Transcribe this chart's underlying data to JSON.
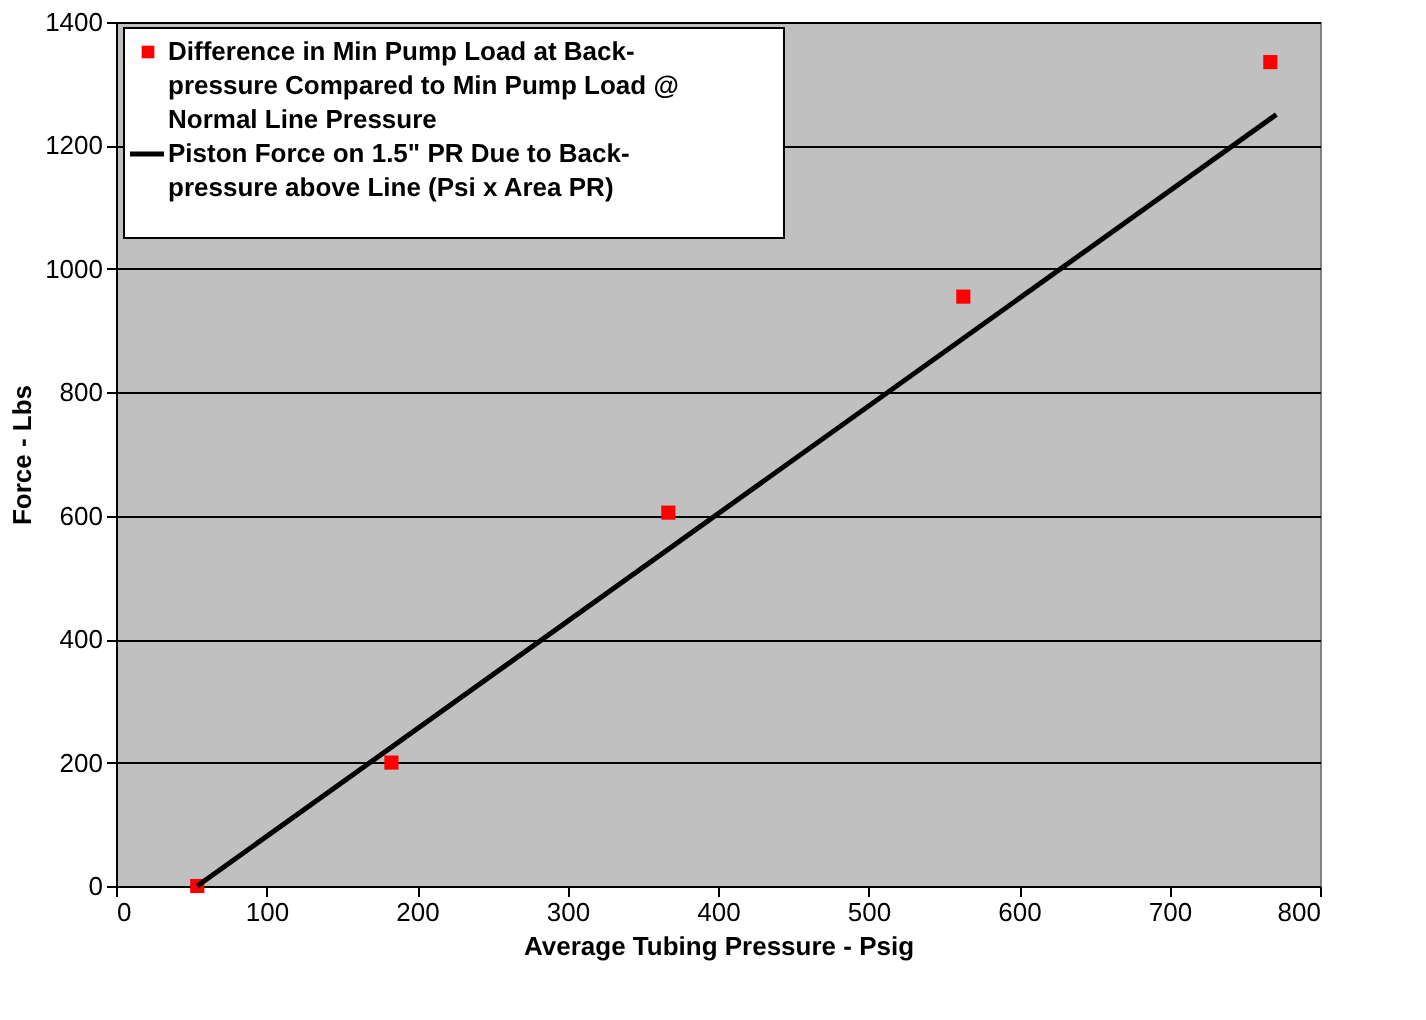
{
  "chart_data": {
    "type": "scatter",
    "xlabel": "Average Tubing Pressure - Psig",
    "ylabel": "Force - Lbs",
    "xlim": [
      0,
      800
    ],
    "xticks": [
      0,
      100,
      200,
      300,
      400,
      500,
      600,
      700,
      800
    ],
    "ylim": [
      0,
      1400
    ],
    "yticks": [
      0,
      200,
      400,
      600,
      800,
      1000,
      1200,
      1400
    ],
    "grid": "y",
    "legend": "top left",
    "series": [
      {
        "name": "Difference in Min Pump Load at Back-pressure Compared to Min Pump Load @ Normal Line Pressure",
        "marker": "square",
        "color": "#ff0000",
        "x": [
          54,
          183,
          367,
          563,
          767
        ],
        "values": [
          0,
          200,
          605,
          955,
          1335
        ]
      },
      {
        "name": "Piston Force on 1.5\" PR Due to Back-pressure above Line (Psi x  Area PR)",
        "type": "line",
        "marker": "none",
        "line_style": "solid",
        "color": "#000000",
        "x": [
          54,
          771
        ],
        "values": [
          0,
          1250
        ]
      }
    ]
  }
}
